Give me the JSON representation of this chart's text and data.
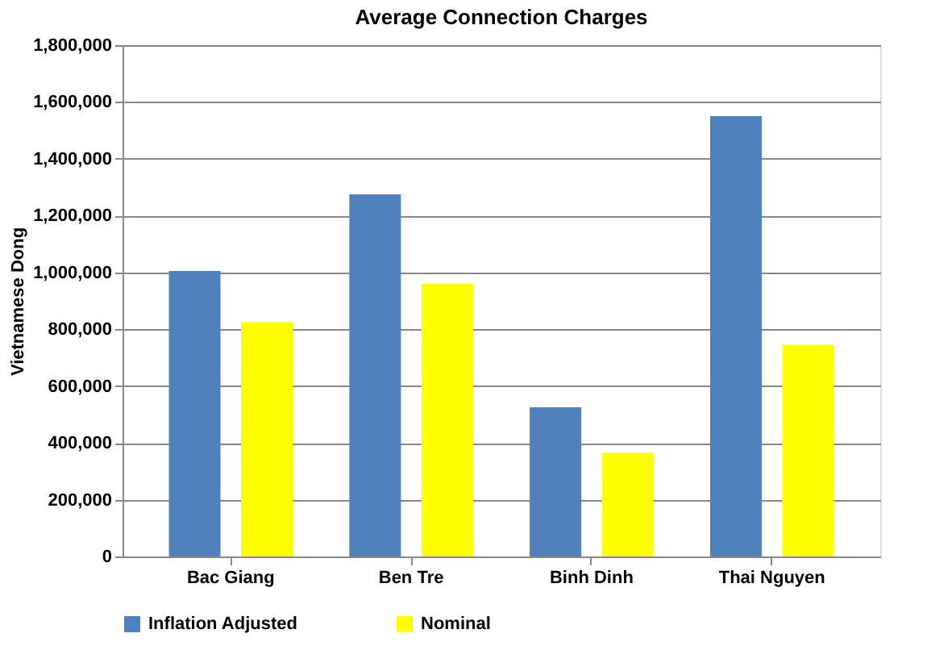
{
  "chart_data": {
    "type": "bar",
    "title": "Average Connection Charges",
    "ylabel": "Vietnamese Dong",
    "categories": [
      "Bac Giang",
      "Ben Tre",
      "Binh Dinh",
      "Thai Nguyen"
    ],
    "series": [
      {
        "name": "Inflation Adjusted",
        "color": "#4f81bd",
        "values": [
          1005000,
          1275000,
          525000,
          1550000
        ]
      },
      {
        "name": "Nominal",
        "color": "#ffff00",
        "values": [
          825000,
          960000,
          365000,
          745000
        ]
      }
    ],
    "ylim": [
      0,
      1800000
    ],
    "yticks": [
      {
        "value": 0,
        "label": "0"
      },
      {
        "value": 200000,
        "label": "200,000"
      },
      {
        "value": 400000,
        "label": "400,000"
      },
      {
        "value": 600000,
        "label": "600,000"
      },
      {
        "value": 800000,
        "label": "800,000"
      },
      {
        "value": 1000000,
        "label": "1,000,000"
      },
      {
        "value": 1200000,
        "label": "1,200,000"
      },
      {
        "value": 1400000,
        "label": "1,400,000"
      },
      {
        "value": 1600000,
        "label": "1,600,000"
      },
      {
        "value": 1800000,
        "label": "1,800,000"
      }
    ],
    "grid": "y",
    "legend": "bottom"
  }
}
